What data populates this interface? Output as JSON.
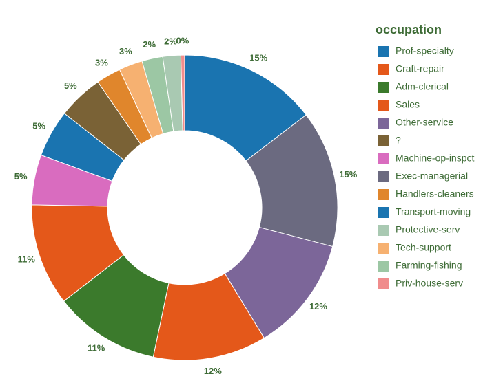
{
  "chart_data": {
    "type": "donut",
    "legend_title": "occupation",
    "categories": [
      "Prof-specialty",
      "Craft-repair",
      "Adm-clerical",
      "Sales",
      "Other-service",
      "?",
      "Machine-op-inspct",
      "Exec-managerial",
      "Handlers-cleaners",
      "Transport-moving",
      "Protective-serv",
      "Tech-support",
      "Farming-fishing",
      "Priv-house-serv"
    ],
    "values": [
      14.6,
      10.8,
      11.2,
      12.0,
      12.2,
      4.8,
      5.3,
      14.5,
      2.6,
      5.0,
      1.9,
      2.5,
      2.2,
      0.4
    ],
    "value_labels": [
      "15%",
      "11%",
      "11%",
      "12%",
      "12%",
      "5%",
      "5%",
      "15%",
      "3%",
      "5%",
      "2%",
      "3%",
      "2%",
      "0%"
    ],
    "colors": [
      "#1a74b0",
      "#e4581a",
      "#3b7a2c",
      "#e4581a",
      "#7c6699",
      "#7a6236",
      "#d96cbf",
      "#6b6a80",
      "#e0862c",
      "#1a74b0",
      "#a9c9b2",
      "#f6b171",
      "#9cc7a4",
      "#f08c8c"
    ],
    "legend": "right"
  }
}
